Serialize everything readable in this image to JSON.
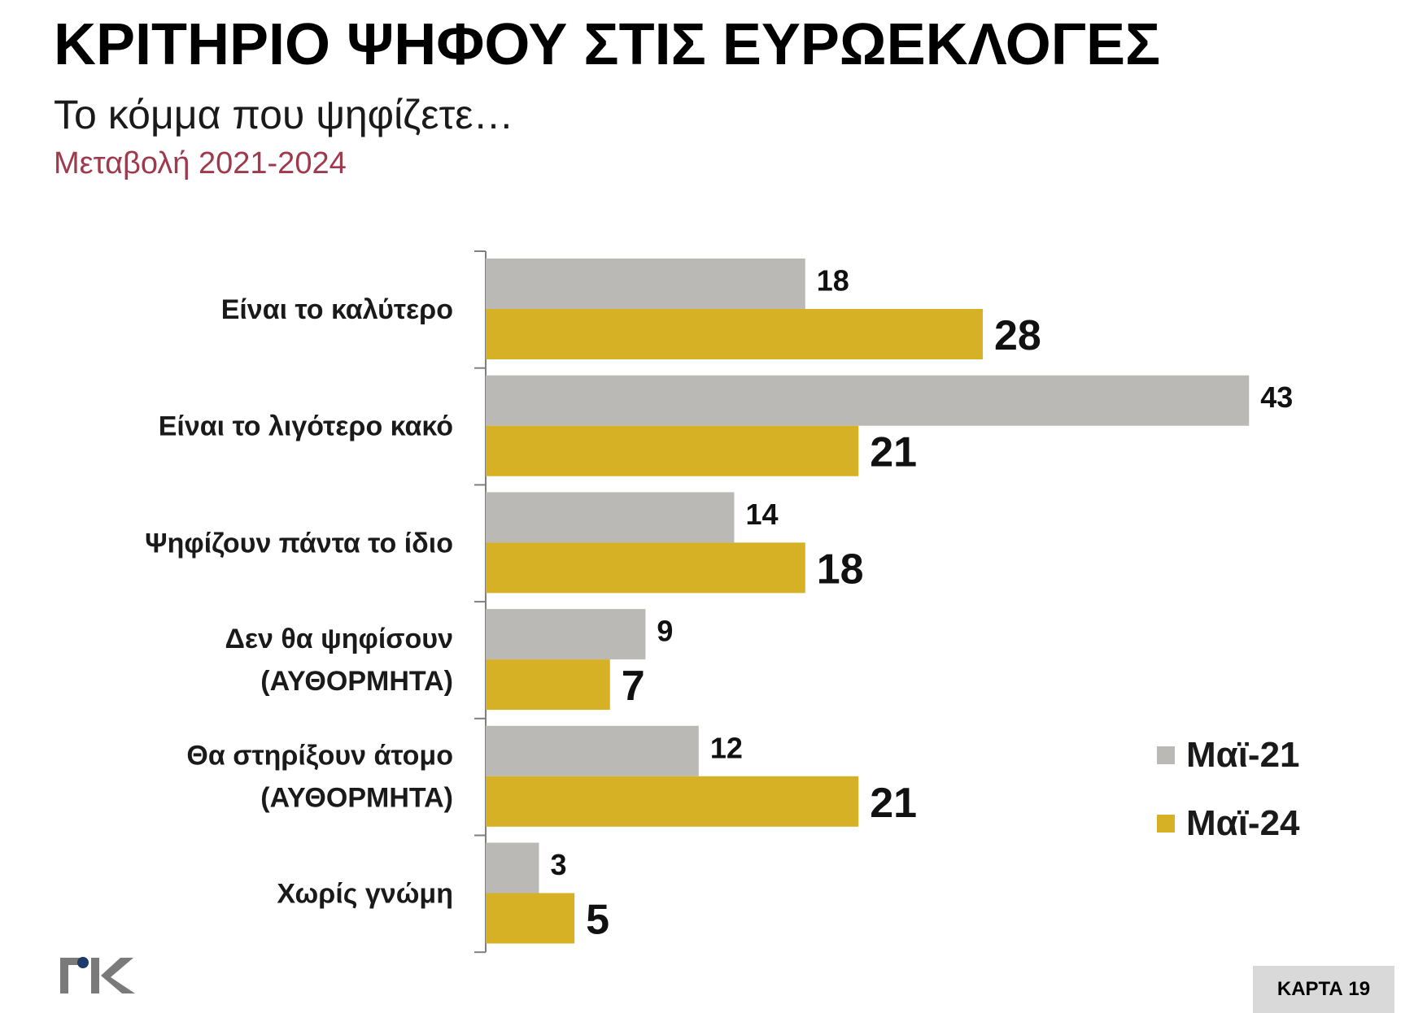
{
  "header": {
    "title": "ΚΡΙΤΗΡΙΟ ΨΗΦΟΥ ΣΤΙΣ ΕΥΡΩΕΚΛΟΓΕΣ",
    "subtitle": "Το κόμμα που ψηφίζετε…",
    "subnote": "Μεταβολή 2021-2024"
  },
  "colors": {
    "accent_text": "#9e3a4c",
    "series_1": "#bbb9b5",
    "series_2": "#d6b025",
    "axis": "#7f7f7f"
  },
  "chart_data": {
    "type": "bar",
    "orientation": "horizontal",
    "categories": [
      [
        "Είναι το καλύτερο"
      ],
      [
        "Είναι το λιγότερο κακό"
      ],
      [
        "Ψηφίζουν πάντα το ίδιο"
      ],
      [
        "Δεν θα ψηφίσουν",
        "(ΑΥΘΟΡΜΗΤΑ)"
      ],
      [
        "Θα στηρίξουν άτομο",
        "(ΑΥΘΟΡΜΗΤΑ)"
      ],
      [
        "Χωρίς γνώμη"
      ]
    ],
    "series": [
      {
        "name": "Μαϊ-21",
        "values": [
          18,
          43,
          14,
          9,
          12,
          3
        ]
      },
      {
        "name": "Μαϊ-24",
        "values": [
          28,
          21,
          18,
          7,
          21,
          5
        ]
      }
    ],
    "xlim": [
      0,
      43
    ],
    "grid": false,
    "legend_position": "bottom-right"
  },
  "legend": {
    "items": [
      {
        "label": "Μαϊ-21",
        "color": "#bbb9b5"
      },
      {
        "label": "Μαϊ-24",
        "color": "#d6b025"
      }
    ]
  },
  "logo": {
    "text": "ΓΙΚ"
  },
  "badge": {
    "label": "ΚΑΡΤΑ 19"
  }
}
